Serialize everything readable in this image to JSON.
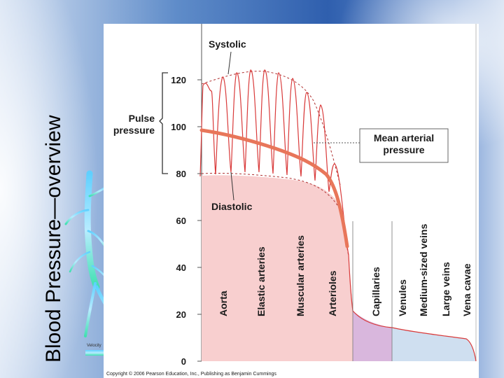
{
  "slide": {
    "title": "Blood Pressure—overview",
    "accent_color": "#3a66b3"
  },
  "figure": {
    "annotations": {
      "systolic": "Systolic",
      "pulse_pressure_line1": "Pulse",
      "pulse_pressure_line2": "pressure",
      "mean_arterial_line1": "Mean arterial",
      "mean_arterial_line2": "pressure",
      "diastolic": "Diastolic"
    },
    "y_ticks": [
      "120",
      "100",
      "80",
      "60",
      "40",
      "20",
      "0"
    ],
    "regions": [
      "Aorta",
      "Elastic arteries",
      "Muscular arteries",
      "Arterioles",
      "Capillaries",
      "Venules",
      "Medium-sized veins",
      "Large veins",
      "Vena cavae"
    ],
    "colors": {
      "arterial_fill": "#f8cfcf",
      "arterial_curve": "#d93a3a",
      "mean_curve": "#e8765a",
      "capillary_fill": "#d9b7dd",
      "venous_fill": "#cfdff0",
      "venous_curve": "#3a55a0"
    },
    "copyright": "Copyright © 2006 Pearson Education, Inc., Publishing as Benjamin Cummings"
  },
  "vessel_inset": {
    "legend_title": "Velocity",
    "icon": "vessel-tree-icon"
  }
}
